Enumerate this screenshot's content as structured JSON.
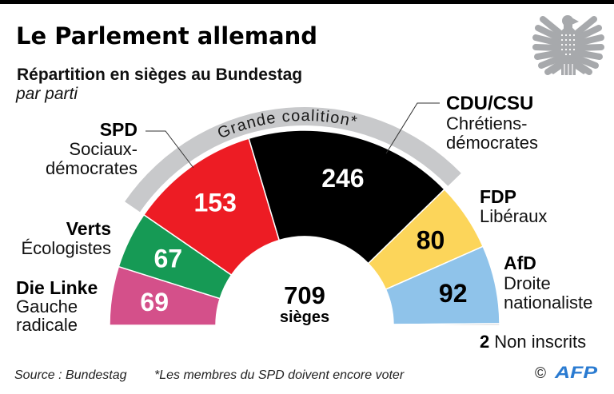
{
  "header": {
    "title": "Le Parlement allemand",
    "subtitle": "Répartition en sièges au Bundestag",
    "note": "par parti"
  },
  "logo": {
    "icon": "bundestag-eagle-icon",
    "color": "#a7a9ac"
  },
  "chart_data": {
    "type": "pie",
    "variant": "hemicycle",
    "title": "Le Parlement allemand",
    "subtitle": "Répartition en sièges au Bundestag, par parti",
    "categories": [
      "Die Linke",
      "Verts",
      "SPD",
      "CDU/CSU",
      "FDP",
      "AfD",
      "Non inscrits"
    ],
    "values": [
      69,
      67,
      153,
      246,
      80,
      92,
      2
    ],
    "descriptions": [
      [
        "Gauche",
        "radicale"
      ],
      [
        "Écologistes"
      ],
      [
        "Sociaux-",
        "démocrates"
      ],
      [
        "Chrétiens-",
        "démocrates"
      ],
      [
        "Libéraux"
      ],
      [
        "Droite",
        "nationaliste"
      ],
      []
    ],
    "colors": [
      "#d4508a",
      "#169a55",
      "#ed1c24",
      "#000000",
      "#fcd55a",
      "#8fc3ea",
      "#a9abae"
    ],
    "label_colors": [
      "#ffffff",
      "#ffffff",
      "#ffffff",
      "#ffffff",
      "#000000",
      "#000000",
      "#000000"
    ],
    "total": "709",
    "total_label": "sièges",
    "coalition": {
      "label": "Grande coalition*",
      "members": [
        "SPD",
        "CDU/CSU"
      ],
      "color": "#c8c9cb"
    },
    "legend": "labels around the arc"
  },
  "footer": {
    "source": "Source : Bundestag",
    "footnote": "*Les membres du SPD doivent encore voter",
    "copyright_symbol": "©",
    "agency": "AFP",
    "agency_color": "#2a7bd1"
  }
}
